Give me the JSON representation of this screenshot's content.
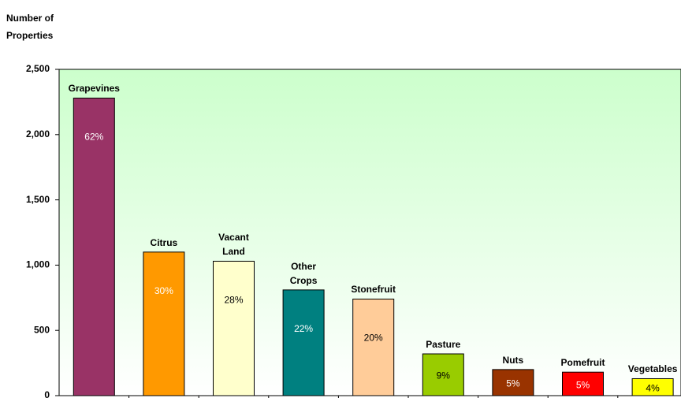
{
  "chart_data": {
    "type": "bar",
    "y_label": "Number of Properties",
    "categories": [
      "Grapevines",
      "Citrus",
      "Vacant Land",
      "Other Crops",
      "Stonefruit",
      "Pasture",
      "Nuts",
      "Pomefruit",
      "Vegetables"
    ],
    "values": [
      2280,
      1100,
      1030,
      810,
      740,
      320,
      200,
      180,
      130
    ],
    "share_labels": [
      "62%",
      "30%",
      "28%",
      "22%",
      "20%",
      "9%",
      "5%",
      "5%",
      "4%"
    ],
    "colors": [
      "#993366",
      "#ff9900",
      "#ffffcc",
      "#008080",
      "#ffcc99",
      "#99cc00",
      "#993300",
      "#ff0000",
      "#ffff00"
    ],
    "label_colors": [
      "#ffffff",
      "#ffffff",
      "#000000",
      "#ffffff",
      "#000000",
      "#000000",
      "#ffffff",
      "#ffffff",
      "#000000"
    ],
    "ylim": [
      0,
      2500
    ],
    "yticks": [
      0,
      {
        "value": 500,
        "label": "500"
      },
      {
        "value": 1000,
        "label": "1,000"
      },
      {
        "value": 1500,
        "label": "1,500"
      },
      {
        "value": 2000,
        "label": "2,000"
      },
      {
        "value": 2500,
        "label": "2,500"
      }
    ],
    "grid": false
  }
}
